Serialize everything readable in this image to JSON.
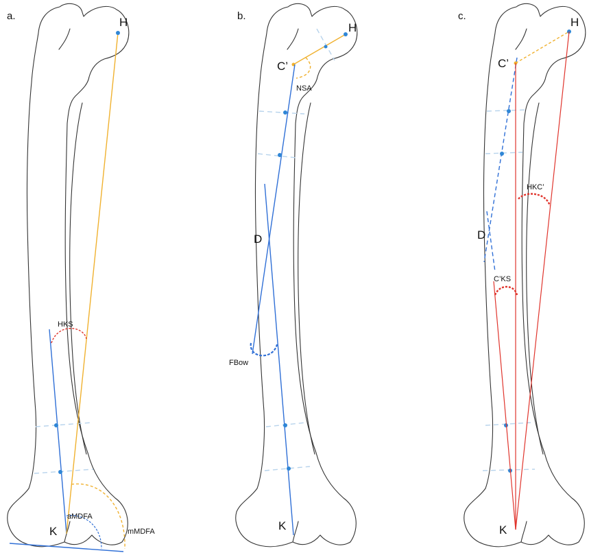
{
  "panels": [
    {
      "id": "a",
      "label": "a.",
      "points": {
        "H": "H",
        "K": "K"
      },
      "angles": {
        "HKS": "HKS",
        "aMDFA": "aMDFA",
        "mMDFA": "mMDFA"
      }
    },
    {
      "id": "b",
      "label": "b.",
      "points": {
        "H": "H",
        "C": "C’",
        "D": "D",
        "K": "K"
      },
      "angles": {
        "NSA": "NSA",
        "FBow": "FBow"
      }
    },
    {
      "id": "c",
      "label": "c.",
      "points": {
        "H": "H",
        "C": "C’",
        "D": "D",
        "K": "K"
      },
      "angles": {
        "HKC": "HKC’",
        "CKS": "C’KS"
      }
    }
  ],
  "colors": {
    "anatomic_axis": "#2f6fd6",
    "mechanical_axis": "#f0b12f",
    "angle_arc": "#e0342c",
    "shaft_guides": "#b7d3ec",
    "outline": "#333333"
  }
}
